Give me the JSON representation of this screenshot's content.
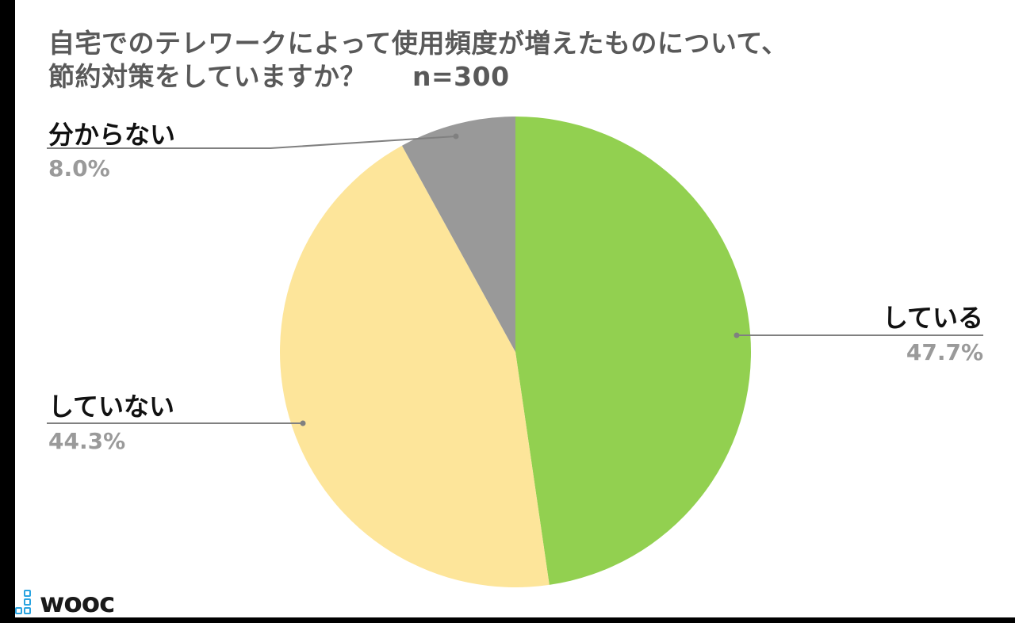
{
  "title_line1": "自宅でのテレワークによって使用頻度が増えたものについて、",
  "title_line2": "節約対策をしていますか？",
  "sample_size": "n=300",
  "logo_text": "wooc",
  "chart_data": {
    "type": "pie",
    "title": "自宅でのテレワークによって使用頻度が増えたものについて、節約対策をしていますか？ n=300",
    "start_angle_deg": 0,
    "direction": "clockwise",
    "slices": [
      {
        "label": "している",
        "value": 47.7,
        "value_label": "47.7%",
        "color": "#92d050"
      },
      {
        "label": "していない",
        "value": 44.3,
        "value_label": "44.3%",
        "color": "#fde59a"
      },
      {
        "label": "分からない",
        "value": 8.0,
        "value_label": "8.0%",
        "color": "#999999"
      }
    ],
    "leader_line_color": "#808080",
    "legend": "none"
  }
}
